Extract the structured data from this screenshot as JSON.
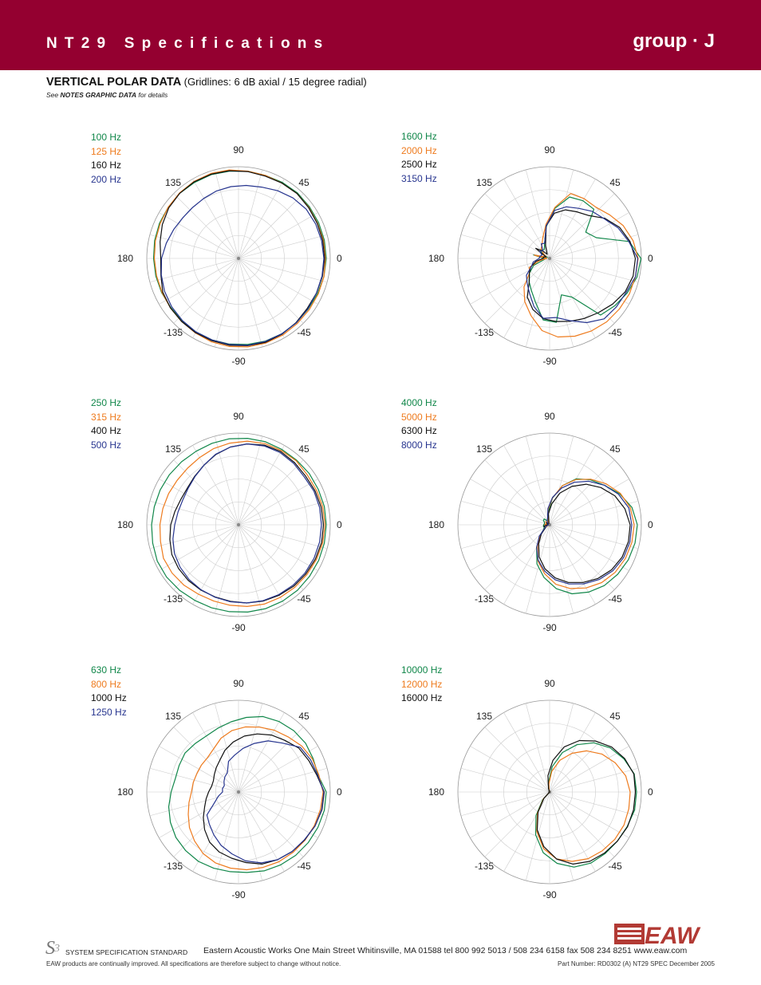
{
  "header": {
    "title": "NT29 Specifications",
    "group": "group · J",
    "bg_color": "#940030"
  },
  "section": {
    "title": "VERTICAL POLAR  DATA",
    "subtitle": "(Gridlines: 6 dB axial / 15 degree radial)",
    "notes_prefix": "See ",
    "notes_bold": "NOTES GRAPHIC DATA",
    "notes_suffix": " for details"
  },
  "polar_axis_labels": {
    "deg90": "90",
    "deg45": "45",
    "deg0": "0",
    "deg135": "135",
    "deg180": "180",
    "degm135": "-135",
    "degm90": "-90",
    "degm45": "-45"
  },
  "series_colors": [
    "#11874a",
    "#ee7b1e",
    "#111111",
    "#27358f"
  ],
  "chart_data": [
    {
      "type": "polar",
      "series": [
        {
          "name": "100 Hz",
          "color": "#11874a",
          "values": [
            22,
            22,
            22,
            22,
            22.1,
            22,
            21.9,
            22,
            22,
            22.1,
            22,
            22,
            21.8,
            21.7,
            21.5,
            21.3,
            21.2,
            21.1,
            21,
            21.1,
            21.3,
            21.5,
            21.6,
            21.7,
            21.8,
            21.8,
            21.7,
            21.6,
            21.7,
            21.9
          ]
        },
        {
          "name": "125 Hz",
          "color": "#ee7b1e",
          "values": [
            21.8,
            21.8,
            21.7,
            21.8,
            21.9,
            21.8,
            21.9,
            22,
            22.3,
            22.4,
            22.3,
            22.1,
            21.8,
            21.5,
            21.3,
            21.1,
            21,
            21,
            21.1,
            21.3,
            21.6,
            22,
            22.2,
            22.3,
            22.3,
            22.2,
            22,
            21.9,
            21.9,
            21.9
          ]
        },
        {
          "name": "160 Hz",
          "color": "#111111",
          "values": [
            21.6,
            21.6,
            21.6,
            21.7,
            21.9,
            21.8,
            21.7,
            21.9,
            22.1,
            22.2,
            22.2,
            22,
            21.6,
            20.9,
            20.1,
            19.5,
            19.9,
            20.8,
            21.1,
            21.3,
            21.5,
            21.7,
            21.9,
            22,
            22.1,
            21.9,
            21.6,
            21.3,
            21.4,
            21.5
          ]
        },
        {
          "name": "200 Hz",
          "color": "#27358f",
          "values": [
            21.4,
            21.3,
            21.2,
            21,
            20.4,
            19.6,
            18.8,
            18.4,
            18.1,
            17.8,
            17.4,
            17.2,
            17.3,
            17.8,
            18.5,
            19.3,
            19.8,
            20.3,
            20.7,
            21,
            21.3,
            21.5,
            21.7,
            21.9,
            21.9,
            21.8,
            21.7,
            21.5,
            21.4,
            21.4
          ]
        }
      ]
    },
    {
      "type": "polar",
      "series": [
        {
          "name": "1600 Hz",
          "color": "#11874a",
          "values": [
            22.9,
            20.4,
            12.8,
            11.2,
            16.6,
            16.7,
            16.2,
            12.6,
            8,
            4.1,
            2.6,
            2.8,
            2.7,
            0.6,
            4.1,
            1.3,
            1.4,
            4.4,
            6.2,
            7.7,
            9.2,
            11.5,
            15.5,
            16.1,
            9.6,
            11.2,
            19.1,
            20.2,
            21.3,
            22.4
          ]
        },
        {
          "name": "2000 Hz",
          "color": "#ee7b1e",
          "values": [
            22.2,
            21.4,
            20.2,
            18.6,
            17.3,
            17.3,
            17.1,
            12.9,
            8.6,
            5.5,
            3.9,
            3.2,
            1.8,
            0.9,
            3.9,
            0.7,
            2.6,
            5.6,
            6.2,
            9.6,
            12.5,
            15.1,
            18.2,
            19.8,
            20.5,
            21,
            21.4,
            21.6,
            21.9,
            22
          ]
        },
        {
          "name": "2500 Hz",
          "color": "#111111",
          "values": [
            21.5,
            20.6,
            19.2,
            17.1,
            14.5,
            13.5,
            12.8,
            11.4,
            8.2,
            3.3,
            1.2,
            2.5,
            4.3,
            1,
            1.6,
            1.6,
            3.5,
            5.1,
            6.3,
            7.6,
            11.2,
            13.5,
            15.2,
            15.9,
            16.6,
            17.4,
            18.3,
            19.5,
            20.7,
            21.4
          ]
        },
        {
          "name": "3150 Hz",
          "color": "#27358f",
          "values": [
            22.1,
            20.3,
            18.8,
            16.9,
            15.9,
            14.5,
            13.6,
            12.1,
            8.2,
            4,
            4.2,
            2.5,
            3.1,
            2.1,
            2.5,
            2.6,
            4.2,
            5,
            7.2,
            8.4,
            10.1,
            12.7,
            15.1,
            14.9,
            16.4,
            18.6,
            20.4,
            20.7,
            21,
            22
          ]
        }
      ]
    },
    {
      "type": "polar",
      "series": [
        {
          "name": "250 Hz",
          "color": "#11874a",
          "values": [
            22,
            22,
            21.9,
            21.9,
            21.8,
            21.8,
            21.9,
            21.8,
            21.7,
            21.5,
            21.3,
            21.3,
            21.4,
            21.5,
            21.6,
            21.8,
            22,
            22.3,
            22.3,
            22.1,
            21.9,
            21.9,
            21.9,
            22,
            22.1,
            22.1,
            22.1,
            22,
            22,
            22
          ]
        },
        {
          "name": "315 Hz",
          "color": "#ee7b1e",
          "values": [
            21.7,
            21.6,
            21.4,
            21.3,
            21.6,
            21.5,
            21.4,
            21.1,
            20.6,
            20.1,
            19.5,
            19.1,
            19,
            19.2,
            19.4,
            19.7,
            20,
            20.6,
            20.6,
            20.4,
            20.1,
            20.1,
            20.3,
            20.6,
            20.9,
            21,
            21.1,
            21.2,
            21.4,
            21.6
          ]
        },
        {
          "name": "400 Hz",
          "color": "#111111",
          "values": [
            21.3,
            21.2,
            21,
            20.8,
            21,
            21.2,
            21,
            20.4,
            19.6,
            18.5,
            17.3,
            16.4,
            15.8,
            15.8,
            16.3,
            17,
            17.6,
            18.3,
            18.6,
            18.8,
            18.9,
            19,
            19.3,
            19.7,
            20.1,
            20.4,
            20.7,
            20.9,
            21.1,
            21.3
          ]
        },
        {
          "name": "500 Hz",
          "color": "#27358f",
          "values": [
            20.8,
            20.8,
            20.7,
            20.4,
            20.7,
            20.9,
            20.8,
            20.4,
            19.6,
            18.6,
            17.3,
            16.3,
            15.6,
            15.3,
            15.5,
            16,
            16.8,
            17.6,
            18.1,
            18.5,
            18.8,
            19.1,
            19.4,
            19.7,
            20,
            20.2,
            20.4,
            20.6,
            20.7,
            20.8
          ]
        }
      ]
    },
    {
      "type": "polar",
      "series": [
        {
          "name": "4000 Hz",
          "color": "#11874a",
          "values": [
            22,
            21.1,
            19.2,
            16.9,
            15.2,
            13.3,
            10.3,
            6.7,
            3.2,
            1.6,
            1.1,
            2,
            1.9,
            1.4,
            1.3,
            1.5,
            1.6,
            1.5,
            1.8,
            3.4,
            6.5,
            10.3,
            13.3,
            16.1,
            18.2,
            19.5,
            20.5,
            21.1,
            21.6,
            21.9
          ]
        },
        {
          "name": "5000 Hz",
          "color": "#ee7b1e",
          "values": [
            21.2,
            20.7,
            19.4,
            17.5,
            15.4,
            13.1,
            10.3,
            6.8,
            3.8,
            1.4,
            0.4,
            0.9,
            1.3,
            0.5,
            1.1,
            1.2,
            0.4,
            0.6,
            1.6,
            3.5,
            6.1,
            9.5,
            12.3,
            15,
            16.8,
            18.3,
            19.5,
            20.3,
            20.8,
            21.1
          ]
        },
        {
          "name": "6300 Hz",
          "color": "#111111",
          "values": [
            20.2,
            19.3,
            17.9,
            15.9,
            13.7,
            11.1,
            8.4,
            5.3,
            2.8,
            0.6,
            0.4,
            0.4,
            0.9,
            0.7,
            0.4,
            0.5,
            1.5,
            1.3,
            1.3,
            3.1,
            5.5,
            8.5,
            11.1,
            13.4,
            15.2,
            16.7,
            18.1,
            19.2,
            19.9,
            20.2
          ]
        },
        {
          "name": "8000 Hz",
          "color": "#27358f",
          "values": [
            20.6,
            20.3,
            18.9,
            16.9,
            14.7,
            12.3,
            9.7,
            6.9,
            4.1,
            1.7,
            1.2,
            0.9,
            0.5,
            0.4,
            0.4,
            0.3,
            0.5,
            0.9,
            1.6,
            3.9,
            6.5,
            9.3,
            11.7,
            13.9,
            15.6,
            17.1,
            18.5,
            19.6,
            20.3,
            20.6
          ]
        }
      ]
    },
    {
      "type": "polar",
      "series": [
        {
          "name": "630 Hz",
          "color": "#11874a",
          "values": [
            22,
            20.4,
            20.5,
            20.8,
            20.7,
            20.4,
            19.9,
            18.8,
            17.7,
            16.8,
            16.2,
            16.3,
            16.6,
            16.3,
            16.2,
            16.9,
            17.9,
            18.7,
            19.4,
            19.8,
            20.1,
            20.1,
            20.1,
            20.3,
            20.8,
            21.1,
            21.4,
            21.6,
            21.8,
            22
          ]
        },
        {
          "name": "800 Hz",
          "color": "#ee7b1e",
          "values": [
            21.2,
            20.6,
            20.3,
            19.6,
            18.6,
            17.9,
            17.1,
            16.4,
            15.5,
            14.2,
            12.5,
            11.6,
            11.5,
            11.4,
            11.6,
            11.8,
            12.7,
            13.8,
            15.2,
            16.5,
            17.8,
            18.7,
            19.2,
            19.6,
            19.9,
            20.2,
            20.4,
            20.6,
            20.8,
            21
          ]
        },
        {
          "name": "1000 Hz",
          "color": "#111111",
          "values": [
            21.5,
            20.1,
            19.3,
            18.7,
            17.4,
            16.5,
            15.3,
            14.1,
            12.6,
            11,
            9.3,
            8.3,
            7.5,
            6.9,
            6.9,
            7.5,
            8.3,
            9.3,
            10.9,
            12.7,
            14.5,
            15.8,
            16.7,
            17.8,
            19,
            19.6,
            20.1,
            20.5,
            21,
            21.4
          ]
        },
        {
          "name": "1250 Hz",
          "color": "#27358f",
          "values": [
            21.4,
            20.3,
            19.8,
            19.1,
            16.5,
            14.8,
            12.8,
            11,
            9.3,
            8.1,
            5.6,
            5.1,
            4.5,
            3.9,
            4.1,
            4,
            5.2,
            6.6,
            9.8,
            10.9,
            12.4,
            14.1,
            15.6,
            17.4,
            18.7,
            19.6,
            20.1,
            20.4,
            21,
            21.3
          ]
        }
      ]
    },
    {
      "type": "polar",
      "series": [
        {
          "name": "10000 Hz",
          "color": "#11874a",
          "values": [
            21.8,
            21.7,
            20.4,
            18.8,
            16.6,
            13.7,
            10.4,
            6.4,
            2.5,
            0.4,
            0,
            0,
            0,
            0,
            0,
            0,
            0,
            0,
            0,
            2.6,
            6.8,
            11.3,
            15.3,
            18,
            19.8,
            20.6,
            20.8,
            21,
            21.3,
            21.8
          ]
        },
        {
          "name": "12000 Hz",
          "color": "#ee7b1e",
          "values": [
            20.2,
            19.5,
            18,
            16.2,
            13.9,
            11.2,
            8.4,
            5.2,
            2,
            0.4,
            0,
            0,
            0,
            0,
            0,
            0,
            0,
            0,
            0,
            2.3,
            6.1,
            10.4,
            14.3,
            16.9,
            18.3,
            19.3,
            19.8,
            20.2,
            20.4,
            20.3
          ]
        },
        {
          "name": "16000 Hz",
          "color": "#111111",
          "values": [
            21.5,
            21.6,
            20.6,
            19.2,
            17.2,
            14.9,
            11.9,
            8,
            4.1,
            0.9,
            0,
            0,
            0,
            0,
            0,
            0,
            0,
            0,
            0,
            2.1,
            5.8,
            10,
            13.8,
            16.9,
            19,
            20.1,
            20.6,
            21,
            21.4,
            21.5
          ]
        }
      ]
    }
  ],
  "footer": {
    "sss_label": "SYSTEM SPECIFICATION STANDARD",
    "address": "Eastern Acoustic Works  One Main Street  Whitinsville, MA 01588  tel 800 992 5013 / 508 234 6158  fax 508 234 8251  www.eaw.com",
    "disclaimer": "EAW products are continually improved.  All specifications are therefore subject to change without notice.",
    "part_number": "Part Number: RD0302 (A) NT29 SPEC  December 2005",
    "brand": "EAW"
  }
}
